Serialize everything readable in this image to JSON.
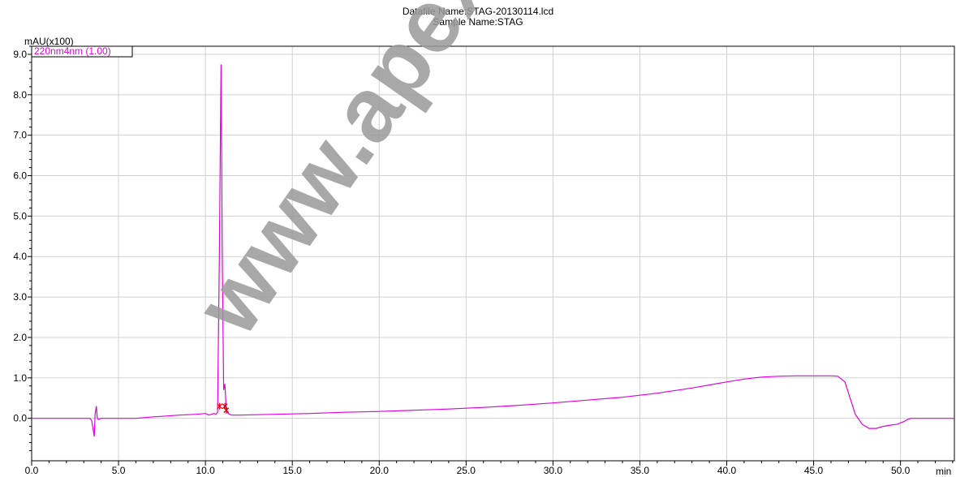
{
  "header": {
    "datafile": "Datafile Name:STAG-20130114.lcd",
    "sample": "Sample Name:STAG"
  },
  "watermark": "www.apexbt.com",
  "colors": {
    "trace": "#e000e0",
    "peak_marker": "#e00000",
    "grid": "#d0d0d0",
    "axis": "#000000",
    "watermark": "#9a9a9a"
  },
  "chart_data": {
    "type": "line",
    "ylabel": "mAU(x100)",
    "xlabel": "min",
    "xlim": [
      0,
      53.1
    ],
    "ylim": [
      -1.05,
      9.2
    ],
    "x_ticks": [
      "0.0",
      "5.0",
      "10.0",
      "15.0",
      "20.0",
      "25.0",
      "30.0",
      "35.0",
      "40.0",
      "45.0",
      "50.0"
    ],
    "y_ticks": [
      "0.0",
      "1.0",
      "2.0",
      "3.0",
      "4.0",
      "5.0",
      "6.0",
      "7.0",
      "8.0",
      "9.0"
    ],
    "grid": true,
    "legend": {
      "placement": "top-left",
      "entries": [
        "220nm4nm (1.00)"
      ]
    },
    "series": [
      {
        "name": "220nm4nm (1.00)",
        "x": [
          0,
          3.35,
          3.45,
          3.55,
          3.6,
          3.65,
          3.72,
          3.78,
          3.85,
          4.0,
          5.0,
          6.0,
          6.8,
          7.5,
          8.5,
          9.5,
          10.0,
          10.2,
          10.35,
          10.5,
          10.6,
          10.7,
          10.8,
          10.9,
          10.97,
          11.05,
          11.12,
          11.2,
          11.3,
          11.5,
          12.0,
          14.0,
          16.0,
          18.0,
          20.0,
          22.0,
          24.0,
          26.0,
          28.0,
          30.0,
          32.0,
          34.0,
          36.0,
          38.0,
          40.0,
          41.0,
          42.0,
          43.0,
          44.0,
          45.0,
          46.0,
          46.4,
          46.8,
          47.1,
          47.4,
          47.8,
          48.2,
          48.6,
          49.0,
          49.4,
          49.8,
          50.2,
          50.4,
          50.6,
          51.0,
          51.5,
          52.0,
          53.1
        ],
        "y": [
          0.0,
          0.0,
          -0.05,
          -0.3,
          -0.45,
          0.1,
          0.3,
          0.0,
          -0.03,
          0.0,
          0.0,
          0.0,
          0.03,
          0.05,
          0.08,
          0.1,
          0.12,
          0.08,
          0.1,
          0.12,
          0.1,
          0.15,
          4.0,
          8.75,
          4.0,
          0.7,
          0.85,
          0.2,
          0.12,
          0.08,
          0.08,
          0.1,
          0.12,
          0.15,
          0.17,
          0.2,
          0.23,
          0.27,
          0.32,
          0.38,
          0.45,
          0.52,
          0.62,
          0.75,
          0.9,
          0.97,
          1.02,
          1.04,
          1.05,
          1.05,
          1.05,
          1.04,
          0.9,
          0.5,
          0.1,
          -0.15,
          -0.25,
          -0.25,
          -0.2,
          -0.17,
          -0.15,
          -0.08,
          -0.03,
          0.0,
          0.0,
          0.0,
          0.0,
          0.0
        ]
      }
    ],
    "peak_markers_x": [
      10.82,
      11.12,
      11.2
    ]
  }
}
